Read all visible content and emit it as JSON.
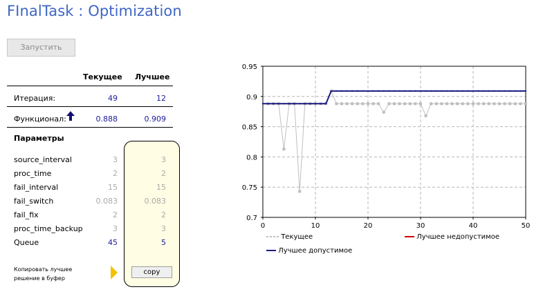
{
  "title": "FInalTask : Optimization",
  "run_button": "Запустить",
  "table": {
    "col_current": "Текущее",
    "col_best": "Лучшее",
    "iteration": {
      "label": "Итерация:",
      "current": "49",
      "best": "12"
    },
    "functional": {
      "label": "Функционал:",
      "current": "0.888",
      "best": "0.909"
    }
  },
  "params": {
    "title": "Параметры",
    "rows": [
      {
        "name": "source_interval",
        "current": "3",
        "best": "3"
      },
      {
        "name": "proc_time",
        "current": "2",
        "best": "2"
      },
      {
        "name": "fail_interval",
        "current": "15",
        "best": "15"
      },
      {
        "name": "fail_switch",
        "current": "0.083",
        "best": "0.083"
      },
      {
        "name": "fail_fix",
        "current": "2",
        "best": "2"
      },
      {
        "name": "proc_time_backup",
        "current": "3",
        "best": "3"
      },
      {
        "name": "Queue",
        "current": "45",
        "best": "5"
      }
    ]
  },
  "copy": {
    "label_line1": "Копировать лучшее",
    "label_line2": "решение в буфер",
    "button": "copy"
  },
  "icons": {
    "functional_direction": "arrow-up-icon",
    "copy_pointer": "triangle-right-icon"
  },
  "colors": {
    "title": "#3e66c4",
    "current_series": "#c0c0c0",
    "best_infeasible": "#cc0000",
    "best_feasible": "#1a1a80",
    "param_box": "#fffde3"
  },
  "chart_data": {
    "type": "line",
    "xlim": [
      0,
      50
    ],
    "ylim": [
      0.7,
      0.95
    ],
    "x_ticks": [
      "0",
      "10",
      "20",
      "30",
      "40",
      "50"
    ],
    "y_ticks": [
      "0.7",
      "0.75",
      "0.8",
      "0.85",
      "0.9",
      "0.95"
    ],
    "grid": true,
    "legend_position": "bottom",
    "legend": [
      "Текущее",
      "Лучшее недопустимое",
      "Лучшее допустимое"
    ],
    "series": [
      {
        "name": "Текущее",
        "x": [
          1,
          2,
          3,
          4,
          5,
          6,
          7,
          8,
          9,
          10,
          11,
          12,
          13,
          14,
          15,
          16,
          17,
          18,
          19,
          20,
          21,
          22,
          23,
          24,
          25,
          26,
          27,
          28,
          29,
          30,
          31,
          32,
          33,
          34,
          35,
          36,
          37,
          38,
          39,
          40,
          41,
          42,
          43,
          44,
          45,
          46,
          47,
          48,
          49,
          50
        ],
        "values": [
          0.888,
          0.888,
          0.888,
          0.813,
          0.888,
          0.888,
          0.743,
          0.888,
          0.888,
          0.888,
          0.888,
          0.888,
          0.909,
          0.888,
          0.888,
          0.888,
          0.888,
          0.888,
          0.888,
          0.888,
          0.888,
          0.888,
          0.874,
          0.888,
          0.888,
          0.888,
          0.888,
          0.888,
          0.888,
          0.888,
          0.868,
          0.888,
          0.888,
          0.888,
          0.888,
          0.888,
          0.888,
          0.888,
          0.888,
          0.888,
          0.888,
          0.888,
          0.888,
          0.888,
          0.888,
          0.888,
          0.888,
          0.888,
          0.888,
          0.888
        ]
      },
      {
        "name": "Лучшее недопустимое",
        "x": [],
        "values": []
      },
      {
        "name": "Лучшее допустимое",
        "x": [
          0,
          1,
          2,
          3,
          4,
          5,
          6,
          7,
          8,
          9,
          10,
          11,
          12,
          13,
          14,
          15,
          16,
          17,
          18,
          19,
          20,
          21,
          22,
          23,
          24,
          25,
          26,
          27,
          28,
          29,
          30,
          31,
          32,
          33,
          34,
          35,
          36,
          37,
          38,
          39,
          40,
          41,
          42,
          43,
          44,
          45,
          46,
          47,
          48,
          49,
          50
        ],
        "values": [
          0.888,
          0.888,
          0.888,
          0.888,
          0.888,
          0.888,
          0.888,
          0.888,
          0.888,
          0.888,
          0.888,
          0.888,
          0.888,
          0.909,
          0.909,
          0.909,
          0.909,
          0.909,
          0.909,
          0.909,
          0.909,
          0.909,
          0.909,
          0.909,
          0.909,
          0.909,
          0.909,
          0.909,
          0.909,
          0.909,
          0.909,
          0.909,
          0.909,
          0.909,
          0.909,
          0.909,
          0.909,
          0.909,
          0.909,
          0.909,
          0.909,
          0.909,
          0.909,
          0.909,
          0.909,
          0.909,
          0.909,
          0.909,
          0.909,
          0.909,
          0.909
        ]
      }
    ]
  }
}
